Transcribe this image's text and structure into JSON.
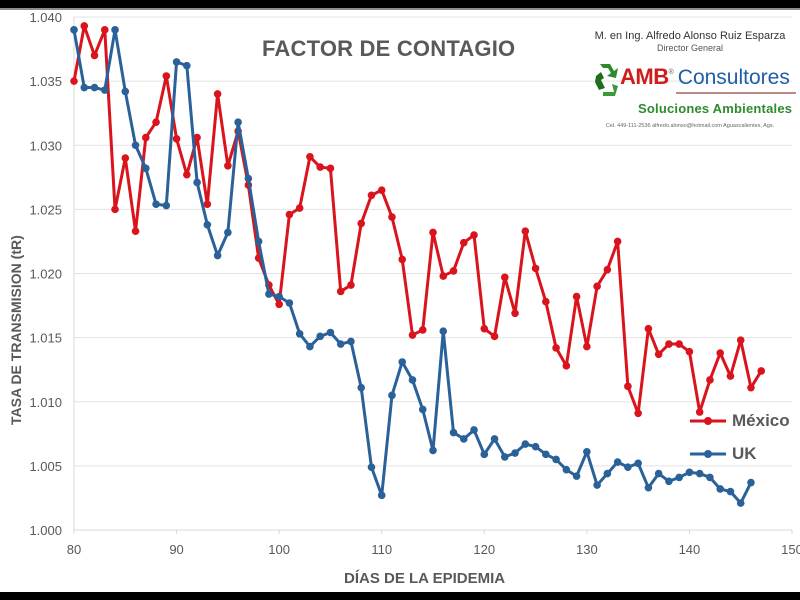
{
  "brand": {
    "author": "M. en Ing. Alfredo Alonso Ruiz Esparza",
    "role": "Director General",
    "logo_mark": "AMB",
    "logo_registered": "®",
    "logo_name": "Consultores",
    "tagline": "Soluciones Ambientales",
    "contact": "Cel. 449-111-2536   alfredo.alonso@hotmail.com   Aguascalientes, Ags.",
    "icon": "recycle-icon",
    "colors": {
      "mark": "#d01c1c",
      "name": "#1f5ea8",
      "tagline": "#2e8b2e"
    }
  },
  "chart_data": {
    "type": "line",
    "title": "FACTOR DE CONTAGIO",
    "xlabel": "DÍAS DE LA EPIDEMIA",
    "ylabel": "TASA DE TRANSMISION (tR)",
    "xlim": [
      80,
      150
    ],
    "ylim": [
      1.0,
      1.04
    ],
    "xticks": [
      "80",
      "90",
      "100",
      "110",
      "120",
      "130",
      "140",
      "150"
    ],
    "yticks": [
      "1.000",
      "1.005",
      "1.010",
      "1.015",
      "1.020",
      "1.025",
      "1.030",
      "1.035",
      "1.040"
    ],
    "grid": true,
    "legend_position": "right",
    "series": [
      {
        "name": "México",
        "color": "#d9141c",
        "x_start": 80,
        "values": [
          1.035,
          1.0393,
          1.037,
          1.039,
          1.025,
          1.029,
          1.0233,
          1.0306,
          1.0318,
          1.0354,
          1.0305,
          1.0277,
          1.0306,
          1.0254,
          1.034,
          1.0284,
          1.0311,
          1.0269,
          1.0212,
          1.0191,
          1.0176,
          1.0246,
          1.0251,
          1.0291,
          1.0283,
          1.0282,
          1.0186,
          1.0191,
          1.0239,
          1.0261,
          1.0265,
          1.0244,
          1.0211,
          1.0152,
          1.0156,
          1.0232,
          1.0198,
          1.0202,
          1.0224,
          1.023,
          1.0157,
          1.0151,
          1.0197,
          1.0169,
          1.0233,
          1.0204,
          1.0178,
          1.0142,
          1.0128,
          1.0182,
          1.0143,
          1.019,
          1.0203,
          1.0225,
          1.0112,
          1.0091,
          1.0157,
          1.0137,
          1.0145,
          1.0145,
          1.0139,
          1.0092,
          1.0117,
          1.0138,
          1.012,
          1.0148,
          1.0111,
          1.0124
        ]
      },
      {
        "name": "UK",
        "color": "#2a6199",
        "x_start": 80,
        "values": [
          1.039,
          1.0345,
          1.0345,
          1.0343,
          1.039,
          1.0342,
          1.03,
          1.0282,
          1.0254,
          1.0253,
          1.0365,
          1.0362,
          1.0271,
          1.0238,
          1.0214,
          1.0232,
          1.0318,
          1.0274,
          1.0225,
          1.0184,
          1.0182,
          1.0177,
          1.0153,
          1.0143,
          1.0151,
          1.0154,
          1.0145,
          1.0147,
          1.0111,
          1.0049,
          1.0027,
          1.0105,
          1.0131,
          1.0117,
          1.0094,
          1.0062,
          1.0155,
          1.0076,
          1.0071,
          1.0078,
          1.0059,
          1.0071,
          1.0057,
          1.006,
          1.0067,
          1.0065,
          1.0059,
          1.0055,
          1.0047,
          1.0042,
          1.0061,
          1.0035,
          1.0044,
          1.0053,
          1.0049,
          1.0052,
          1.0033,
          1.0044,
          1.0038,
          1.0041,
          1.0045,
          1.0044,
          1.0041,
          1.0032,
          1.003,
          1.0021,
          1.0037
        ]
      }
    ]
  }
}
